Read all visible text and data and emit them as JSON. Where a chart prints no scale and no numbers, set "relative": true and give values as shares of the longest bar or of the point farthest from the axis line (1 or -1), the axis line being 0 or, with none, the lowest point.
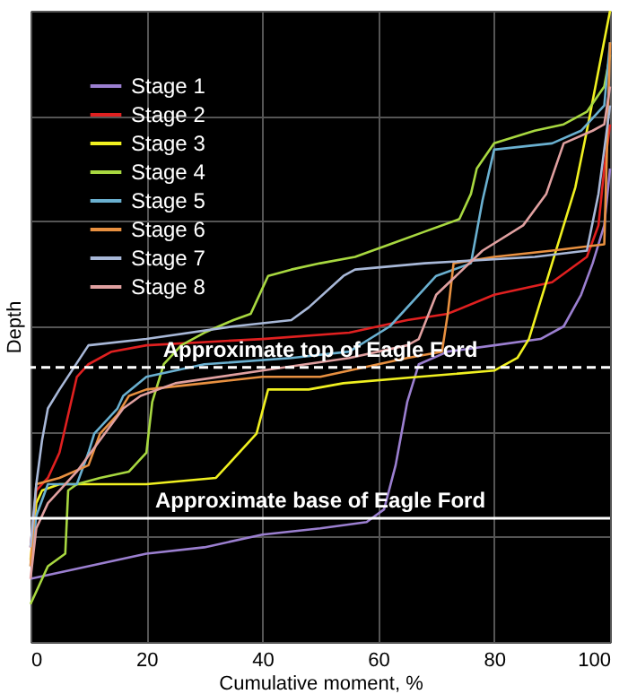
{
  "chart_data": {
    "type": "line",
    "relative": true,
    "xlabel": "Cumulative moment, %",
    "ylabel": "Depth",
    "xlim": [
      0,
      100
    ],
    "xticks": [
      0,
      20,
      40,
      60,
      80,
      100
    ],
    "grid": true,
    "legend": "top left",
    "marker": "none",
    "line_style": "solid",
    "ref_lines": [
      {
        "axis": "y",
        "value": 0.435,
        "label": "Approximate top of Eagle Ford",
        "color": "#ffffff",
        "line_style": "dashed"
      },
      {
        "axis": "y",
        "value": 0.196,
        "label": "Approximate base of Eagle Ford",
        "color": "#ffffff",
        "line_style": "solid"
      }
    ],
    "series": [
      {
        "name": "Stage 1",
        "color": "#9b7fd0",
        "x": [
          0,
          10,
          20,
          30,
          40,
          50,
          58,
          61,
          63,
          65,
          67,
          72,
          80,
          88,
          92,
          95,
          97,
          99,
          100
        ],
        "values": [
          0.1,
          0.12,
          0.14,
          0.15,
          0.17,
          0.18,
          0.19,
          0.21,
          0.28,
          0.38,
          0.44,
          0.46,
          0.47,
          0.48,
          0.5,
          0.55,
          0.6,
          0.66,
          0.75
        ]
      },
      {
        "name": "Stage 2",
        "color": "#e02020",
        "x": [
          0,
          1,
          3,
          5,
          7,
          8,
          10,
          14,
          20,
          40,
          55,
          65,
          72,
          80,
          90,
          96,
          98,
          99,
          100
        ],
        "values": [
          0.15,
          0.24,
          0.26,
          0.3,
          0.38,
          0.42,
          0.44,
          0.46,
          0.47,
          0.48,
          0.49,
          0.51,
          0.52,
          0.55,
          0.57,
          0.61,
          0.66,
          0.75,
          0.82
        ]
      },
      {
        "name": "Stage 3",
        "color": "#f0f020",
        "x": [
          0,
          1,
          2,
          5,
          20,
          32,
          35,
          39,
          41,
          48,
          54,
          67,
          80,
          84,
          86,
          90,
          94,
          96,
          100
        ],
        "values": [
          0.13,
          0.22,
          0.24,
          0.25,
          0.25,
          0.26,
          0.29,
          0.33,
          0.4,
          0.4,
          0.41,
          0.42,
          0.43,
          0.45,
          0.48,
          0.6,
          0.72,
          0.81,
          1.0
        ]
      },
      {
        "name": "Stage 4",
        "color": "#a8d840",
        "x": [
          0,
          1,
          3,
          6,
          6.5,
          8,
          12,
          17,
          20,
          21,
          23,
          26,
          30,
          35,
          38,
          39,
          41,
          45,
          50,
          56,
          62,
          68,
          74,
          76,
          77,
          80,
          87,
          92,
          96,
          99,
          100
        ],
        "values": [
          0.06,
          0.08,
          0.12,
          0.14,
          0.24,
          0.25,
          0.26,
          0.27,
          0.3,
          0.38,
          0.44,
          0.47,
          0.49,
          0.51,
          0.52,
          0.54,
          0.58,
          0.59,
          0.6,
          0.61,
          0.63,
          0.65,
          0.67,
          0.71,
          0.75,
          0.79,
          0.81,
          0.82,
          0.84,
          0.88,
          0.93
        ]
      },
      {
        "name": "Stage 5",
        "color": "#6ab0d0",
        "x": [
          0,
          1,
          3,
          8,
          10,
          11,
          15,
          16,
          20,
          30,
          45,
          55,
          62,
          70,
          76,
          78,
          80,
          90,
          95,
          99,
          100
        ],
        "values": [
          0.12,
          0.2,
          0.25,
          0.25,
          0.3,
          0.33,
          0.37,
          0.39,
          0.42,
          0.44,
          0.45,
          0.46,
          0.5,
          0.58,
          0.6,
          0.7,
          0.78,
          0.79,
          0.81,
          0.85,
          0.95
        ]
      },
      {
        "name": "Stage 6",
        "color": "#e89040",
        "x": [
          0,
          1,
          5,
          10,
          12,
          15,
          17,
          20,
          30,
          40,
          50,
          55,
          65,
          71,
          72,
          73,
          80,
          90,
          99,
          100
        ],
        "values": [
          0.12,
          0.25,
          0.26,
          0.28,
          0.33,
          0.36,
          0.39,
          0.4,
          0.41,
          0.42,
          0.42,
          0.43,
          0.45,
          0.46,
          0.52,
          0.6,
          0.61,
          0.62,
          0.63,
          0.95
        ]
      },
      {
        "name": "Stage 7",
        "color": "#a8b8d8",
        "x": [
          0,
          1,
          2,
          3,
          5,
          10,
          20,
          35,
          45,
          48,
          54,
          56,
          68,
          87,
          96,
          98,
          100
        ],
        "values": [
          0.15,
          0.25,
          0.32,
          0.37,
          0.4,
          0.47,
          0.48,
          0.5,
          0.51,
          0.53,
          0.58,
          0.59,
          0.6,
          0.61,
          0.62,
          0.71,
          0.85
        ]
      },
      {
        "name": "Stage 8",
        "color": "#e0a0a0",
        "x": [
          0,
          1,
          3,
          5,
          8,
          12,
          16,
          19,
          25,
          40,
          55,
          65,
          67,
          70,
          78,
          85,
          89,
          92,
          97,
          99,
          100
        ],
        "values": [
          0.1,
          0.18,
          0.22,
          0.24,
          0.27,
          0.32,
          0.37,
          0.39,
          0.41,
          0.43,
          0.45,
          0.47,
          0.48,
          0.55,
          0.62,
          0.66,
          0.71,
          0.79,
          0.81,
          0.82,
          0.88
        ]
      }
    ]
  }
}
